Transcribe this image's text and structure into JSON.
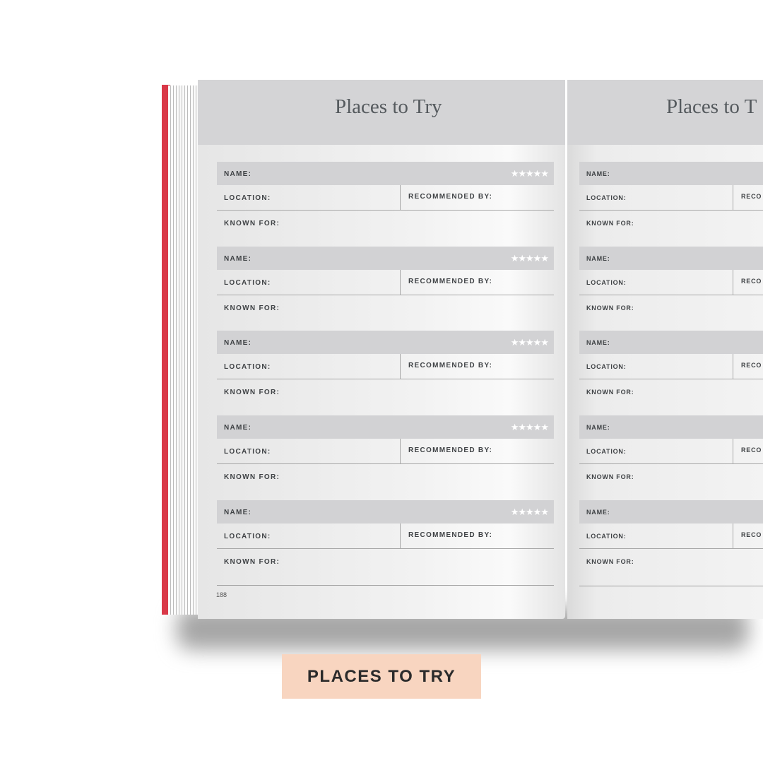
{
  "left_page": {
    "title": "Places to Try",
    "page_number": "188",
    "entries": [
      {
        "name_label": "NAME:",
        "location_label": "LOCATION:",
        "recommended_label": "RECOMMENDED BY:",
        "known_for_label": "KNOWN FOR:",
        "rating_stars": "★★★★★"
      },
      {
        "name_label": "NAME:",
        "location_label": "LOCATION:",
        "recommended_label": "RECOMMENDED BY:",
        "known_for_label": "KNOWN FOR:",
        "rating_stars": "★★★★★"
      },
      {
        "name_label": "NAME:",
        "location_label": "LOCATION:",
        "recommended_label": "RECOMMENDED BY:",
        "known_for_label": "KNOWN FOR:",
        "rating_stars": "★★★★★"
      },
      {
        "name_label": "NAME:",
        "location_label": "LOCATION:",
        "recommended_label": "RECOMMENDED BY:",
        "known_for_label": "KNOWN FOR:",
        "rating_stars": "★★★★★"
      },
      {
        "name_label": "NAME:",
        "location_label": "LOCATION:",
        "recommended_label": "RECOMMENDED BY:",
        "known_for_label": "KNOWN FOR:",
        "rating_stars": "★★★★★"
      }
    ]
  },
  "right_page": {
    "title": "Places to T",
    "entries": [
      {
        "name_label": "NAME:",
        "location_label": "LOCATION:",
        "recommended_label": "RECO",
        "known_for_label": "KNOWN FOR:"
      },
      {
        "name_label": "NAME:",
        "location_label": "LOCATION:",
        "recommended_label": "RECO",
        "known_for_label": "KNOWN FOR:"
      },
      {
        "name_label": "NAME:",
        "location_label": "LOCATION:",
        "recommended_label": "RECO",
        "known_for_label": "KNOWN FOR:"
      },
      {
        "name_label": "NAME:",
        "location_label": "LOCATION:",
        "recommended_label": "RECO",
        "known_for_label": "KNOWN FOR:"
      },
      {
        "name_label": "NAME:",
        "location_label": "LOCATION:",
        "recommended_label": "RECO",
        "known_for_label": "KNOWN FOR:"
      }
    ]
  },
  "caption_label": "PLACES TO TRY",
  "colors": {
    "cover": "#d93848",
    "header_band": "#d4d4d6",
    "caption_bg": "#f8d5c0"
  }
}
